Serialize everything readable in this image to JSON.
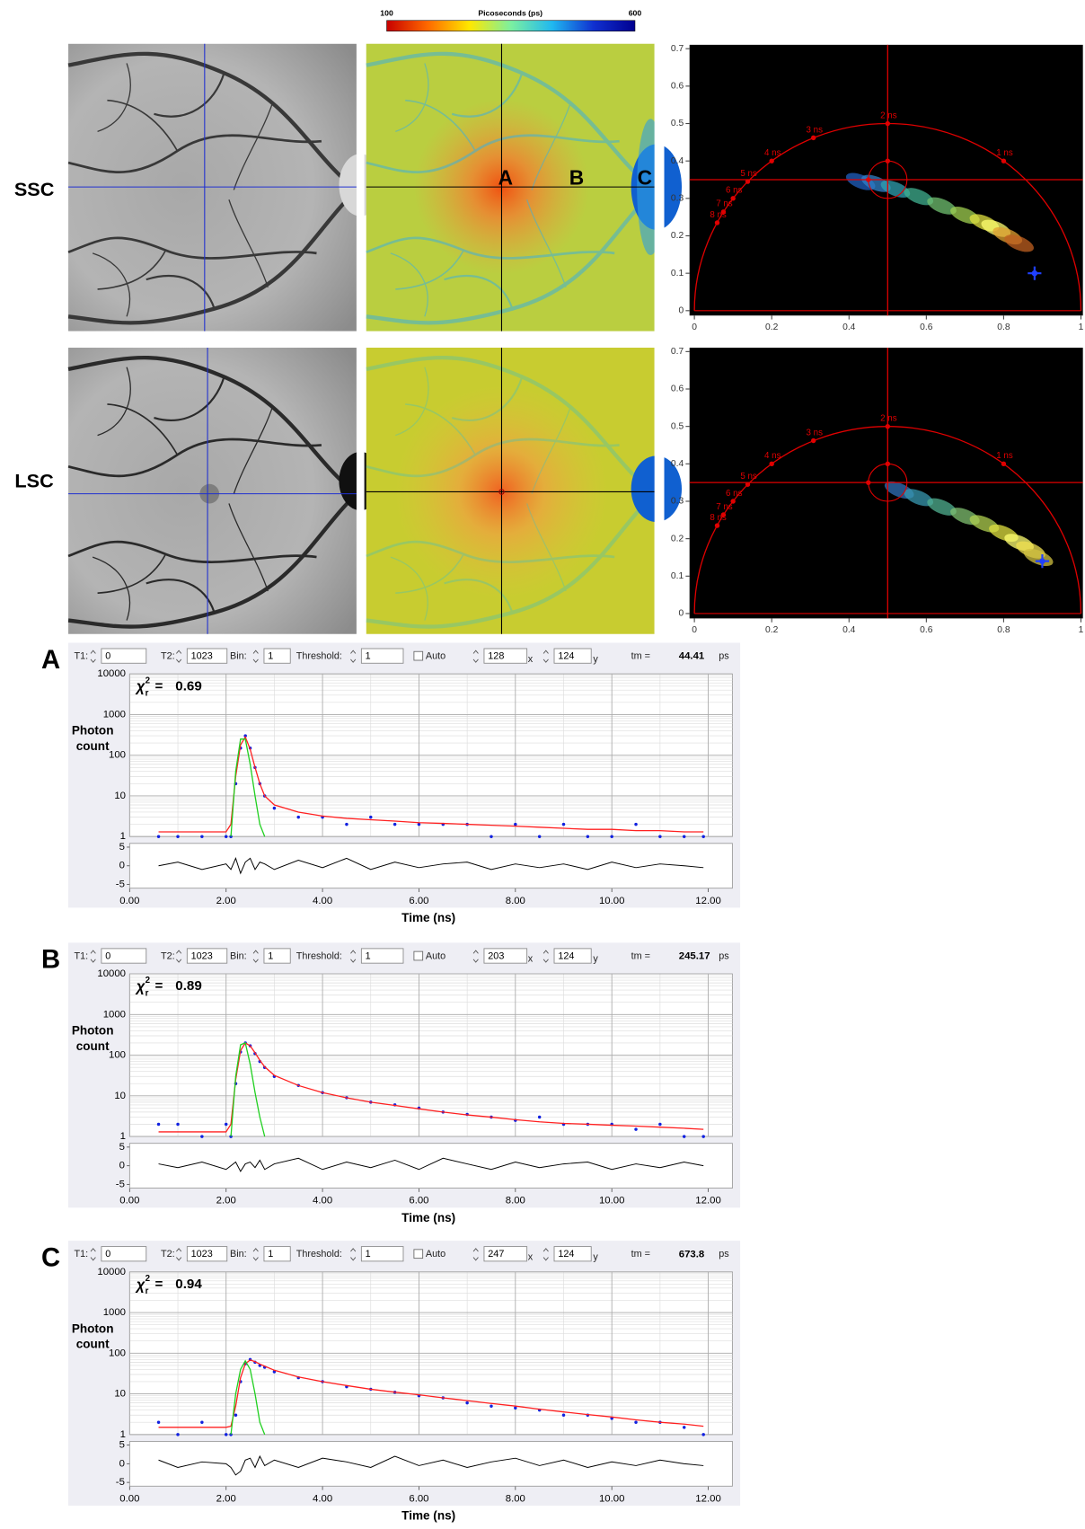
{
  "colorbar": {
    "title": "Picoseconds (ps)",
    "min": 100,
    "max": 600,
    "colors": [
      "#c80000",
      "#ff6a00",
      "#ffe800",
      "#7cf0a0",
      "#20b8f0",
      "#1030d0",
      "#000090"
    ]
  },
  "row_labels": [
    "SSC",
    "LSC"
  ],
  "map_labels": [
    "A",
    "B",
    "C"
  ],
  "chart_data": [
    {
      "type": "phasor",
      "xlim": [
        0,
        1
      ],
      "ylim": [
        0,
        0.7
      ],
      "xticks": [
        0,
        0.2,
        0.4,
        0.6,
        0.8,
        1
      ],
      "yticks": [
        0,
        0.1,
        0.2,
        0.3,
        0.4,
        0.5,
        0.6,
        0.7
      ],
      "color": "#e00000",
      "lifetime_markers": [
        {
          "label": "1 ns",
          "x": 0.8,
          "y": 0.4
        },
        {
          "label": "2 ns",
          "x": 0.5,
          "y": 0.5
        },
        {
          "label": "3 ns",
          "x": 0.308,
          "y": 0.462
        },
        {
          "label": "4 ns",
          "x": 0.2,
          "y": 0.4
        },
        {
          "label": "5 ns",
          "x": 0.138,
          "y": 0.345
        },
        {
          "label": "6 ns",
          "x": 0.1,
          "y": 0.3
        },
        {
          "label": "7 ns",
          "x": 0.075,
          "y": 0.264
        },
        {
          "label": "8 ns",
          "x": 0.059,
          "y": 0.235
        }
      ],
      "cursor": {
        "x": 0.5,
        "y": 0.35,
        "r": 0.05
      },
      "cloud": {
        "x": [
          0.43,
          0.47,
          0.52,
          0.58,
          0.64,
          0.7,
          0.75,
          0.78,
          0.81,
          0.84
        ],
        "y": [
          0.345,
          0.34,
          0.325,
          0.305,
          0.28,
          0.255,
          0.235,
          0.22,
          0.2,
          0.18
        ],
        "colors": [
          "#2060c0",
          "#3080c8",
          "#30a0b0",
          "#40b090",
          "#70c070",
          "#a0d050",
          "#e0e040",
          "#ffff70",
          "#e0a030",
          "#c06020"
        ]
      },
      "reference": {
        "x": 0.88,
        "y": 0.1,
        "color": "#2040ff"
      }
    },
    {
      "type": "phasor",
      "xlim": [
        0,
        1
      ],
      "ylim": [
        0,
        0.7
      ],
      "xticks": [
        0,
        0.2,
        0.4,
        0.6,
        0.8,
        1
      ],
      "yticks": [
        0,
        0.1,
        0.2,
        0.3,
        0.4,
        0.5,
        0.6,
        0.7
      ],
      "color": "#e00000",
      "lifetime_markers": [
        {
          "label": "1 ns",
          "x": 0.8,
          "y": 0.4
        },
        {
          "label": "2 ns",
          "x": 0.5,
          "y": 0.5
        },
        {
          "label": "3 ns",
          "x": 0.308,
          "y": 0.462
        },
        {
          "label": "4 ns",
          "x": 0.2,
          "y": 0.4
        },
        {
          "label": "5 ns",
          "x": 0.138,
          "y": 0.345
        },
        {
          "label": "6 ns",
          "x": 0.1,
          "y": 0.3
        },
        {
          "label": "7 ns",
          "x": 0.075,
          "y": 0.264
        },
        {
          "label": "8 ns",
          "x": 0.059,
          "y": 0.235
        }
      ],
      "cursor": {
        "x": 0.5,
        "y": 0.35,
        "r": 0.05
      },
      "cloud": {
        "x": [
          0.53,
          0.58,
          0.64,
          0.7,
          0.75,
          0.8,
          0.84,
          0.87,
          0.89
        ],
        "y": [
          0.33,
          0.31,
          0.285,
          0.26,
          0.24,
          0.215,
          0.19,
          0.17,
          0.15
        ],
        "colors": [
          "#3070b8",
          "#3898b0",
          "#50b090",
          "#80c070",
          "#b0d050",
          "#e0e040",
          "#ffff70",
          "#f0e050",
          "#d0c040"
        ]
      },
      "reference": {
        "x": 0.9,
        "y": 0.14,
        "color": "#2040ff"
      }
    },
    {
      "type": "decay",
      "panel_label": "A",
      "toolbar": {
        "t1_label": "T1:",
        "t1": 0,
        "t2_label": "T2:",
        "t2": 1023,
        "bin_label": "Bin:",
        "bin": 1,
        "threshold_label": "Threshold:",
        "threshold": 1,
        "auto_label": "Auto",
        "x_pos": 128,
        "x_unit": "x",
        "y_pos": 124,
        "y_unit": "y",
        "tm_label": "tm =",
        "tm": 44.41,
        "tm_unit": "ps"
      },
      "chi": {
        "symbol": "χ",
        "sub": "r",
        "sup": "2",
        "eq": "=",
        "value": 0.69
      },
      "ylabel": [
        "Photon",
        "count"
      ],
      "xlabel": "Time (ns)",
      "xlim": [
        0,
        12.5
      ],
      "ylim": [
        1,
        10000
      ],
      "log_y": true,
      "grid": true,
      "xticks": [
        {
          "value": 0,
          "label": "0.00"
        },
        {
          "value": 2,
          "label": "2.00"
        },
        {
          "value": 4,
          "label": "4.00"
        },
        {
          "value": 6,
          "label": "6.00"
        },
        {
          "value": 8,
          "label": "8.00"
        },
        {
          "value": 10,
          "label": "10.00"
        },
        {
          "value": 12,
          "label": "12.00"
        }
      ],
      "yticks": [
        1,
        10,
        100,
        1000,
        10000
      ],
      "x": [
        0.6,
        1,
        1.5,
        2,
        2.1,
        2.2,
        2.3,
        2.4,
        2.5,
        2.6,
        2.7,
        2.8,
        3,
        3.5,
        4,
        4.5,
        5,
        5.5,
        6,
        6.5,
        7,
        7.5,
        8,
        8.5,
        9,
        9.5,
        10,
        10.5,
        11,
        11.5,
        11.9
      ],
      "series": [
        {
          "color": "#1020e0",
          "mode": "markers",
          "values": [
            1,
            1,
            1,
            1,
            1,
            20,
            150,
            300,
            150,
            50,
            20,
            10,
            5,
            3,
            3,
            2,
            3,
            2,
            2,
            2,
            2,
            1,
            2,
            1,
            2,
            1,
            1,
            2,
            1,
            1,
            1
          ]
        },
        {
          "color": "#ff2020",
          "mode": "lines",
          "values": [
            1.3,
            1.3,
            1.3,
            1.3,
            2,
            30,
            180,
            280,
            140,
            50,
            20,
            10,
            6,
            4,
            3.2,
            2.8,
            2.6,
            2.4,
            2.2,
            2.1,
            2,
            1.9,
            1.8,
            1.7,
            1.6,
            1.5,
            1.5,
            1.4,
            1.4,
            1.3,
            1.3
          ]
        },
        {
          "color": "#20d020",
          "mode": "lines",
          "values": [
            null,
            null,
            null,
            null,
            1,
            40,
            250,
            250,
            60,
            10,
            2,
            1,
            null,
            null,
            null,
            null,
            null,
            null,
            null,
            null,
            null,
            null,
            null,
            null,
            null,
            null,
            null,
            null,
            null,
            null,
            null
          ]
        }
      ],
      "residuals": {
        "ylim": [
          -6,
          6
        ],
        "yticks": [
          5,
          0,
          -5
        ],
        "color": "#000000",
        "values": [
          0,
          1,
          -1,
          0.5,
          -1,
          2,
          -2,
          1,
          2,
          -1,
          1,
          0.5,
          -1,
          1.5,
          -0.5,
          2,
          -1,
          1,
          -0.5,
          0.5,
          1,
          -1,
          0.5,
          -0.5,
          0.5,
          -1,
          1,
          -0.5,
          0.5,
          0,
          -0.5
        ]
      }
    },
    {
      "type": "decay",
      "panel_label": "B",
      "toolbar": {
        "t1_label": "T1:",
        "t1": 0,
        "t2_label": "T2:",
        "t2": 1023,
        "bin_label": "Bin:",
        "bin": 1,
        "threshold_label": "Threshold:",
        "threshold": 1,
        "auto_label": "Auto",
        "x_pos": 203,
        "x_unit": "x",
        "y_pos": 124,
        "y_unit": "y",
        "tm_label": "tm =",
        "tm": 245.17,
        "tm_unit": "ps"
      },
      "chi": {
        "symbol": "χ",
        "sub": "r",
        "sup": "2",
        "eq": "=",
        "value": 0.89
      },
      "ylabel": [
        "Photon",
        "count"
      ],
      "xlabel": "Time (ns)",
      "xlim": [
        0,
        12.5
      ],
      "ylim": [
        1,
        10000
      ],
      "log_y": true,
      "grid": true,
      "xticks": [
        {
          "value": 0,
          "label": "0.00"
        },
        {
          "value": 2,
          "label": "2.00"
        },
        {
          "value": 4,
          "label": "4.00"
        },
        {
          "value": 6,
          "label": "6.00"
        },
        {
          "value": 8,
          "label": "8.00"
        },
        {
          "value": 10,
          "label": "10.00"
        },
        {
          "value": 12,
          "label": "12.00"
        }
      ],
      "yticks": [
        1,
        10,
        100,
        1000,
        10000
      ],
      "x": [
        0.6,
        1,
        1.5,
        2,
        2.1,
        2.2,
        2.3,
        2.4,
        2.5,
        2.6,
        2.7,
        2.8,
        3,
        3.5,
        4,
        4.5,
        5,
        5.5,
        6,
        6.5,
        7,
        7.5,
        8,
        8.5,
        9,
        9.5,
        10,
        10.5,
        11,
        11.5,
        11.9
      ],
      "series": [
        {
          "color": "#1020e0",
          "mode": "markers",
          "values": [
            2,
            2,
            1,
            2,
            1,
            20,
            120,
            200,
            170,
            110,
            70,
            50,
            30,
            18,
            12,
            9,
            7,
            6,
            5,
            4,
            3.5,
            3,
            2.5,
            3,
            2,
            2,
            2,
            1.5,
            2,
            1,
            1
          ]
        },
        {
          "color": "#ff2020",
          "mode": "lines",
          "values": [
            1.3,
            1.3,
            1.3,
            1.3,
            2,
            25,
            130,
            200,
            170,
            115,
            75,
            52,
            32,
            18,
            12,
            9,
            7,
            5.8,
            4.8,
            4,
            3.4,
            3,
            2.6,
            2.3,
            2.1,
            2,
            1.9,
            1.8,
            1.7,
            1.6,
            1.5
          ]
        },
        {
          "color": "#20d020",
          "mode": "lines",
          "values": [
            null,
            null,
            null,
            null,
            1,
            30,
            180,
            200,
            60,
            12,
            3,
            1,
            null,
            null,
            null,
            null,
            null,
            null,
            null,
            null,
            null,
            null,
            null,
            null,
            null,
            null,
            null,
            null,
            null,
            null,
            null
          ]
        }
      ],
      "residuals": {
        "ylim": [
          -6,
          6
        ],
        "yticks": [
          5,
          0,
          -5
        ],
        "color": "#000000",
        "values": [
          0.5,
          -0.5,
          1,
          -1,
          0,
          1,
          -1.5,
          0.5,
          1,
          -0.5,
          1.5,
          -1,
          0.5,
          2,
          -1,
          1,
          -0.5,
          1.5,
          -1,
          2,
          0.5,
          -1,
          1,
          -0.5,
          0.5,
          1,
          -1,
          0.5,
          -0.5,
          1,
          0
        ]
      }
    },
    {
      "type": "decay",
      "panel_label": "C",
      "toolbar": {
        "t1_label": "T1:",
        "t1": 0,
        "t2_label": "T2:",
        "t2": 1023,
        "bin_label": "Bin:",
        "bin": 1,
        "threshold_label": "Threshold:",
        "threshold": 1,
        "auto_label": "Auto",
        "x_pos": 247,
        "x_unit": "x",
        "y_pos": 124,
        "y_unit": "y",
        "tm_label": "tm =",
        "tm": 673.8,
        "tm_unit": "ps"
      },
      "chi": {
        "symbol": "χ",
        "sub": "r",
        "sup": "2",
        "eq": "=",
        "value": 0.94
      },
      "ylabel": [
        "Photon",
        "count"
      ],
      "xlabel": "Time (ns)",
      "xlim": [
        0,
        12.5
      ],
      "ylim": [
        1,
        10000
      ],
      "log_y": true,
      "grid": true,
      "xticks": [
        {
          "value": 0,
          "label": "0.00"
        },
        {
          "value": 2,
          "label": "2.00"
        },
        {
          "value": 4,
          "label": "4.00"
        },
        {
          "value": 6,
          "label": "6.00"
        },
        {
          "value": 8,
          "label": "8.00"
        },
        {
          "value": 10,
          "label": "10.00"
        },
        {
          "value": 12,
          "label": "12.00"
        }
      ],
      "yticks": [
        1,
        10,
        100,
        1000,
        10000
      ],
      "x": [
        0.6,
        1,
        1.5,
        2,
        2.1,
        2.2,
        2.3,
        2.4,
        2.5,
        2.6,
        2.7,
        2.8,
        3,
        3.5,
        4,
        4.5,
        5,
        5.5,
        6,
        6.5,
        7,
        7.5,
        8,
        8.5,
        9,
        9.5,
        10,
        10.5,
        11,
        11.5,
        11.9
      ],
      "series": [
        {
          "color": "#1020e0",
          "mode": "markers",
          "values": [
            2,
            1,
            2,
            1,
            1,
            3,
            20,
            55,
            70,
            60,
            50,
            45,
            35,
            25,
            20,
            15,
            13,
            11,
            9,
            8,
            6,
            5,
            4.5,
            4,
            3,
            3,
            2.5,
            2,
            2,
            1.5,
            1
          ]
        },
        {
          "color": "#ff2020",
          "mode": "lines",
          "values": [
            1.5,
            1.5,
            1.5,
            1.5,
            1.6,
            5,
            25,
            55,
            68,
            62,
            54,
            48,
            38,
            26,
            20,
            16,
            13,
            11,
            9.5,
            8,
            6.8,
            5.8,
            5,
            4.2,
            3.6,
            3.1,
            2.7,
            2.3,
            2,
            1.8,
            1.6
          ]
        },
        {
          "color": "#20d020",
          "mode": "lines",
          "values": [
            null,
            null,
            null,
            null,
            1,
            10,
            40,
            65,
            40,
            10,
            2,
            1,
            null,
            null,
            null,
            null,
            null,
            null,
            null,
            null,
            null,
            null,
            null,
            null,
            null,
            null,
            null,
            null,
            null,
            null,
            null
          ]
        }
      ],
      "residuals": {
        "ylim": [
          -6,
          6
        ],
        "yticks": [
          5,
          0,
          -5
        ],
        "color": "#000000",
        "values": [
          1,
          -1,
          0.5,
          0,
          -1,
          -3,
          -2,
          1,
          1.5,
          -1,
          2,
          -0.5,
          1,
          -1,
          1.5,
          0.5,
          -1,
          2,
          -0.5,
          1,
          -1,
          0.5,
          1.5,
          -0.5,
          1,
          -1,
          0.5,
          -0.5,
          1,
          0,
          -0.5
        ]
      }
    }
  ]
}
